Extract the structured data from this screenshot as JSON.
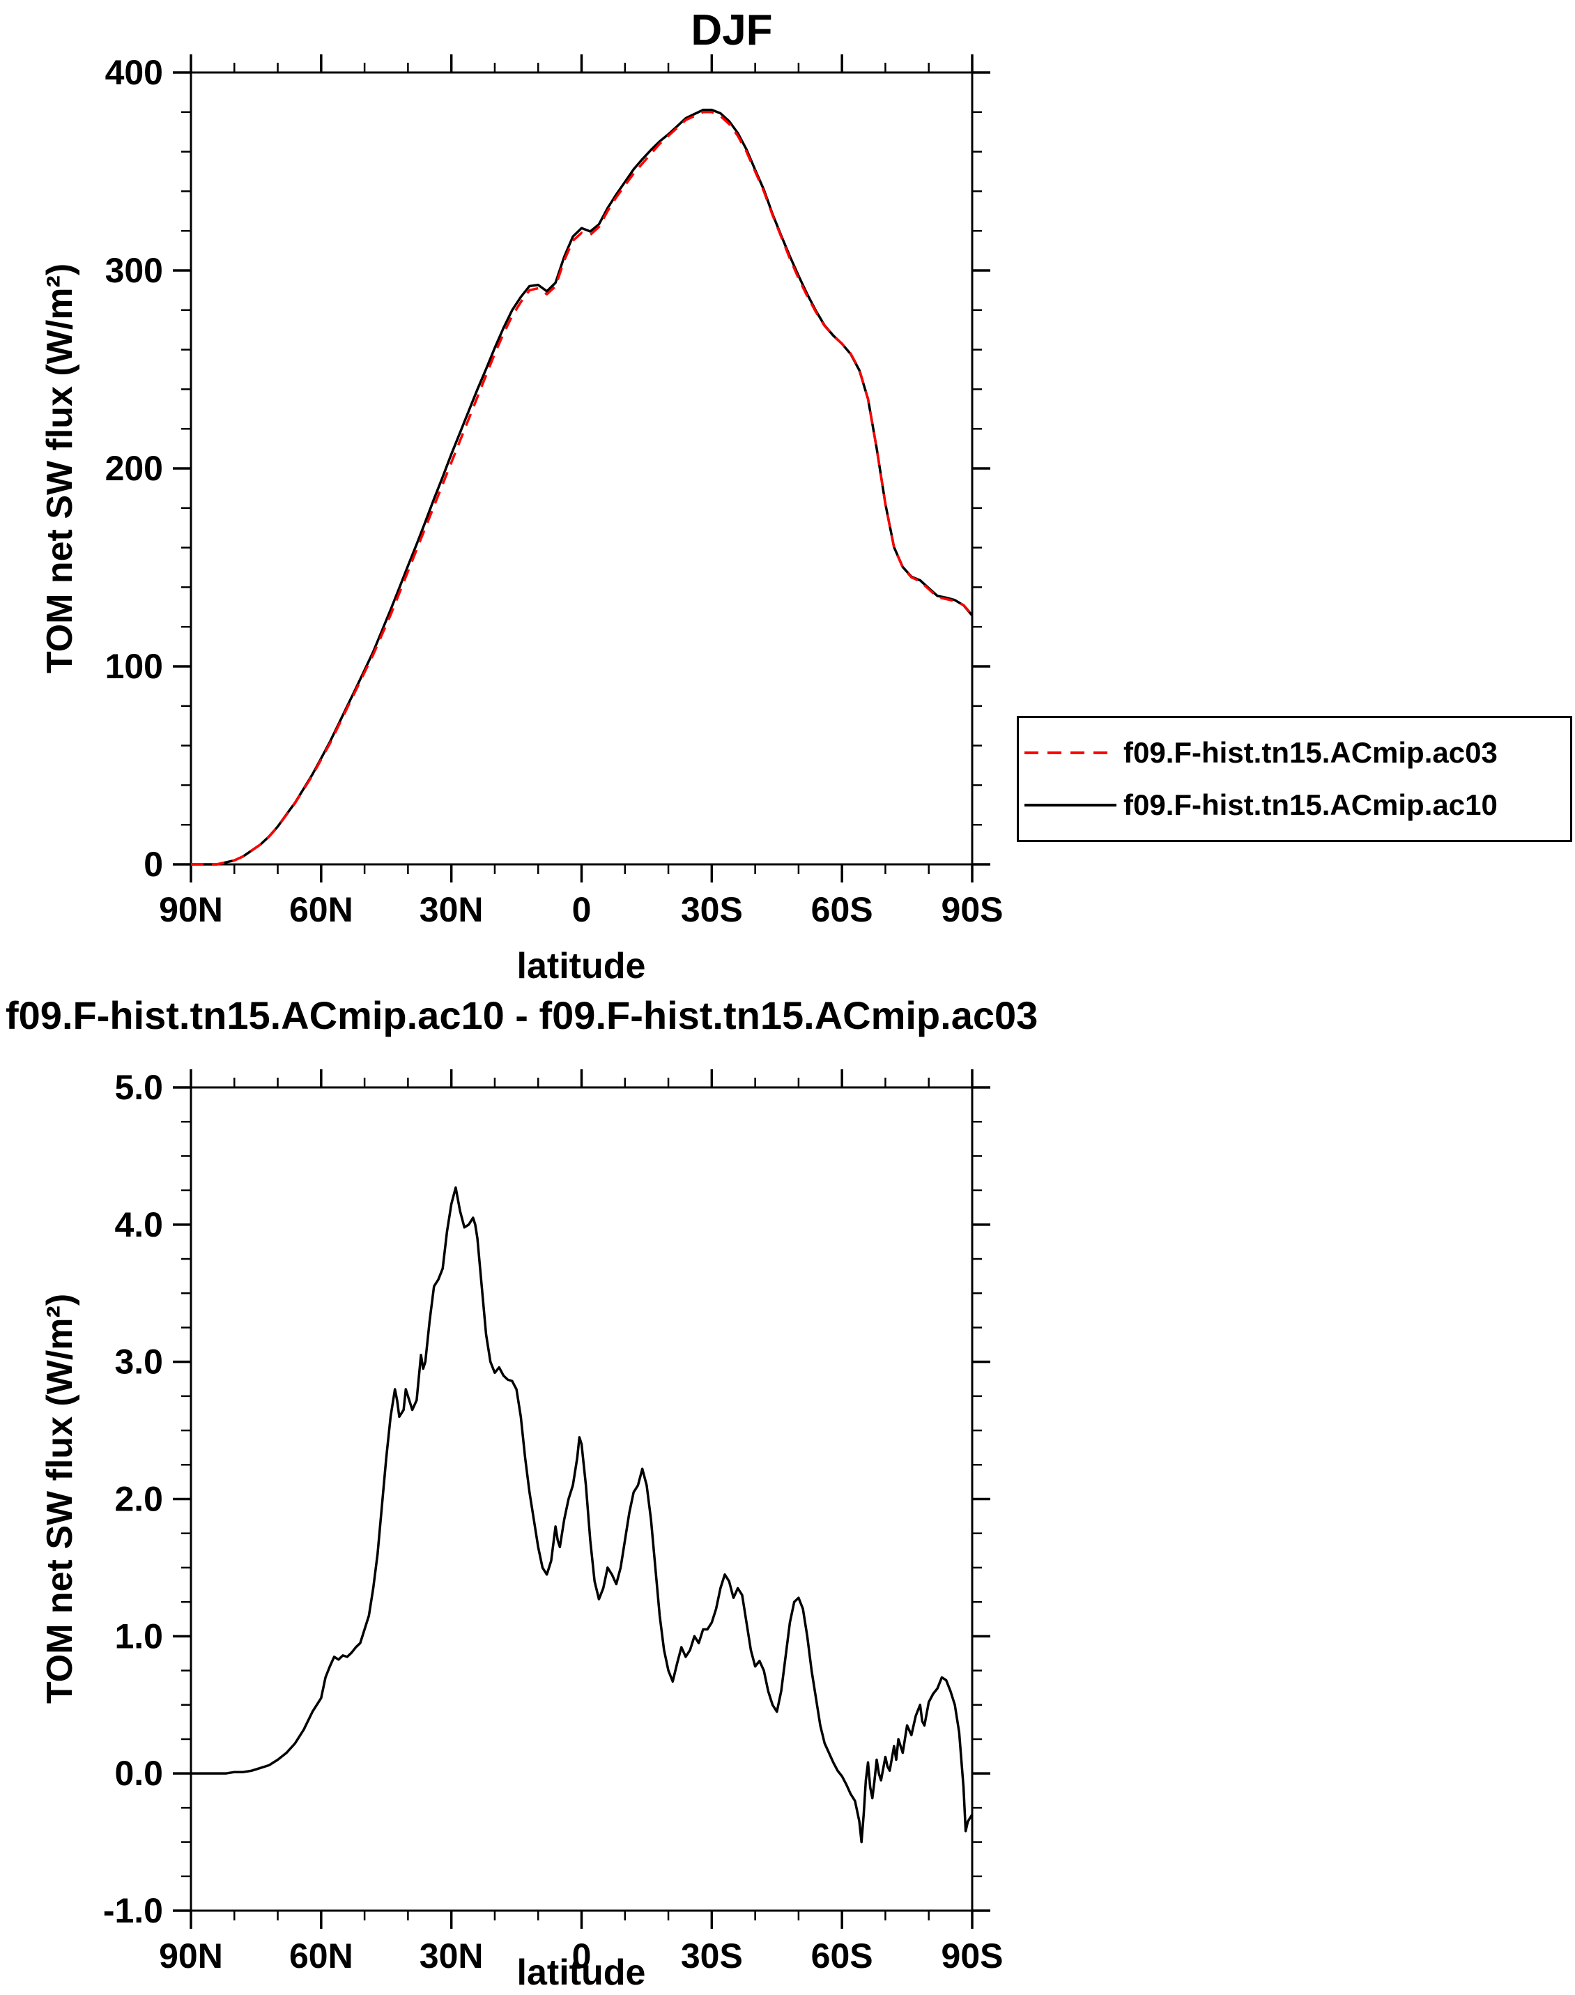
{
  "page": {
    "background": "#ffffff"
  },
  "chart_data": [
    {
      "type": "line",
      "title": "DJF",
      "xlabel": "latitude",
      "ylabel": "TOM net SW flux (W/m²)",
      "xlim": [
        90,
        -90
      ],
      "ylim": [
        0,
        400
      ],
      "grid": false,
      "xticks": {
        "values": [
          90,
          60,
          30,
          0,
          -30,
          -60,
          -90
        ],
        "labels": [
          "90N",
          "60N",
          "30N",
          "0",
          "30S",
          "60S",
          "90S"
        ]
      },
      "yticks": {
        "values": [
          0,
          100,
          200,
          300,
          400
        ],
        "labels": [
          "0",
          "100",
          "200",
          "300",
          "400"
        ]
      },
      "x_minor_step": 10,
      "y_minor_step": 20,
      "legend_position": "right-of-plot-lower",
      "x": [
        90,
        88,
        86,
        84,
        82,
        80,
        78,
        76,
        74,
        72,
        70,
        68,
        66,
        64,
        62,
        60,
        58,
        56,
        54,
        52,
        50,
        48,
        46,
        44,
        42,
        40,
        38,
        36,
        34,
        32,
        30,
        28,
        26,
        24,
        22,
        20,
        18,
        16,
        14,
        12,
        10,
        8,
        6,
        4,
        2,
        0,
        -2,
        -4,
        -6,
        -8,
        -10,
        -12,
        -14,
        -16,
        -18,
        -20,
        -22,
        -24,
        -26,
        -28,
        -30,
        -32,
        -34,
        -36,
        -38,
        -40,
        -42,
        -44,
        -46,
        -48,
        -50,
        -52,
        -54,
        -56,
        -58,
        -60,
        -62,
        -64,
        -66,
        -68,
        -70,
        -72,
        -74,
        -76,
        -78,
        -80,
        -82,
        -84,
        -86,
        -88,
        -90
      ],
      "series": [
        {
          "name": "f09.F-hist.tn15.ACmip.ac03",
          "color": "#ff0000",
          "dashed": true,
          "values": [
            0,
            0,
            0,
            0,
            1,
            2,
            4,
            7,
            10,
            14,
            19,
            25,
            31,
            38,
            45,
            53,
            61,
            70,
            79,
            88,
            97,
            106,
            116,
            126,
            137,
            148,
            159,
            170,
            181,
            192,
            203,
            214,
            225,
            236,
            247,
            258,
            268,
            277,
            284,
            290,
            291,
            288,
            292,
            305,
            315,
            319,
            318,
            322,
            330,
            337,
            343,
            349,
            354,
            359,
            364,
            368,
            372,
            376,
            378,
            380,
            380,
            378,
            374,
            368,
            360,
            350,
            340,
            328,
            317,
            306,
            296,
            287,
            279,
            272,
            267,
            263,
            258,
            250,
            235,
            210,
            182,
            160,
            150,
            145,
            143,
            139,
            135,
            134,
            133,
            131,
            126
          ]
        },
        {
          "name": "f09.F-hist.tn15.ACmip.ac10",
          "color": "#000000",
          "dashed": false,
          "values": [
            0,
            0,
            0,
            0,
            1,
            2,
            4,
            7,
            10,
            14.1,
            19.1,
            25.2,
            31.2,
            38.3,
            45.5,
            53.6,
            61.8,
            70.8,
            79.9,
            88.9,
            98.1,
            107.4,
            118,
            128.6,
            139.6,
            150.8,
            161.7,
            173,
            184.6,
            195.7,
            207.2,
            218.1,
            229,
            239.9,
            250.2,
            260.9,
            270.9,
            279.9,
            286.6,
            292.1,
            292.7,
            289.5,
            293.8,
            306.9,
            317.1,
            321.4,
            319.7,
            323.3,
            331.5,
            338.4,
            344.7,
            351.1,
            356.2,
            360.9,
            365.2,
            368.8,
            372.8,
            376.9,
            379,
            381.1,
            381.1,
            379.4,
            375.4,
            369.4,
            361.1,
            350.8,
            340.8,
            328.5,
            317.6,
            307.1,
            297.3,
            288,
            279.6,
            272.2,
            267.1,
            263,
            257.8,
            249.6,
            235.1,
            210.1,
            182.1,
            160.2,
            150.2,
            145.3,
            143.5,
            139.5,
            135.6,
            134.7,
            133.5,
            130.9,
            125.7
          ]
        }
      ]
    },
    {
      "type": "line",
      "title": "f09.F-hist.tn15.ACmip.ac10 - f09.F-hist.tn15.ACmip.ac03",
      "xlabel": "latitude",
      "ylabel": "TOM net SW flux (W/m²)",
      "xlim": [
        90,
        -90
      ],
      "ylim": [
        -1,
        5
      ],
      "grid": false,
      "xticks": {
        "values": [
          90,
          60,
          30,
          0,
          -30,
          -60,
          -90
        ],
        "labels": [
          "90N",
          "60N",
          "30N",
          "0",
          "30S",
          "60S",
          "90S"
        ]
      },
      "yticks": {
        "values": [
          -1,
          0,
          1,
          2,
          3,
          4,
          5
        ],
        "labels": [
          "-1.0",
          "0.0",
          "1.0",
          "2.0",
          "3.0",
          "4.0",
          "5.0"
        ]
      },
      "x_minor_step": 10,
      "y_minor_step": 0.25,
      "line_color": "#000000",
      "points": [
        [
          90,
          0
        ],
        [
          85,
          0
        ],
        [
          82,
          0
        ],
        [
          80,
          0.01
        ],
        [
          78,
          0.01
        ],
        [
          76,
          0.02
        ],
        [
          74,
          0.04
        ],
        [
          72,
          0.06
        ],
        [
          70,
          0.1
        ],
        [
          68,
          0.15
        ],
        [
          66,
          0.22
        ],
        [
          64,
          0.32
        ],
        [
          62,
          0.45
        ],
        [
          60,
          0.55
        ],
        [
          59,
          0.7
        ],
        [
          58,
          0.78
        ],
        [
          57,
          0.85
        ],
        [
          56,
          0.83
        ],
        [
          55,
          0.86
        ],
        [
          54,
          0.85
        ],
        [
          53,
          0.88
        ],
        [
          52,
          0.92
        ],
        [
          51,
          0.95
        ],
        [
          50,
          1.05
        ],
        [
          49,
          1.15
        ],
        [
          48,
          1.35
        ],
        [
          47,
          1.6
        ],
        [
          46,
          1.95
        ],
        [
          45,
          2.3
        ],
        [
          44,
          2.6
        ],
        [
          43,
          2.8
        ],
        [
          42.5,
          2.72
        ],
        [
          42,
          2.6
        ],
        [
          41,
          2.65
        ],
        [
          40.5,
          2.8
        ],
        [
          40,
          2.75
        ],
        [
          39,
          2.65
        ],
        [
          38,
          2.72
        ],
        [
          37,
          3.05
        ],
        [
          36.5,
          2.95
        ],
        [
          36,
          3.0
        ],
        [
          35,
          3.3
        ],
        [
          34,
          3.55
        ],
        [
          33,
          3.6
        ],
        [
          32,
          3.68
        ],
        [
          31,
          3.95
        ],
        [
          30,
          4.15
        ],
        [
          29,
          4.27
        ],
        [
          28,
          4.1
        ],
        [
          27,
          3.98
        ],
        [
          26,
          4.0
        ],
        [
          25,
          4.05
        ],
        [
          24.5,
          4.0
        ],
        [
          24,
          3.9
        ],
        [
          23,
          3.55
        ],
        [
          22,
          3.2
        ],
        [
          21,
          3.0
        ],
        [
          20,
          2.92
        ],
        [
          19,
          2.96
        ],
        [
          18,
          2.9
        ],
        [
          17,
          2.87
        ],
        [
          16,
          2.86
        ],
        [
          15,
          2.8
        ],
        [
          14,
          2.6
        ],
        [
          13,
          2.3
        ],
        [
          12,
          2.05
        ],
        [
          11,
          1.85
        ],
        [
          10,
          1.65
        ],
        [
          9,
          1.5
        ],
        [
          8,
          1.45
        ],
        [
          7,
          1.55
        ],
        [
          6,
          1.8
        ],
        [
          5.5,
          1.7
        ],
        [
          5,
          1.65
        ],
        [
          4,
          1.85
        ],
        [
          3,
          2.0
        ],
        [
          2,
          2.1
        ],
        [
          1,
          2.3
        ],
        [
          0.5,
          2.45
        ],
        [
          0,
          2.4
        ],
        [
          -1,
          2.1
        ],
        [
          -2,
          1.7
        ],
        [
          -3,
          1.4
        ],
        [
          -4,
          1.27
        ],
        [
          -5,
          1.35
        ],
        [
          -6,
          1.5
        ],
        [
          -7,
          1.45
        ],
        [
          -8,
          1.38
        ],
        [
          -9,
          1.5
        ],
        [
          -10,
          1.7
        ],
        [
          -11,
          1.9
        ],
        [
          -12,
          2.05
        ],
        [
          -13,
          2.1
        ],
        [
          -14,
          2.22
        ],
        [
          -15,
          2.1
        ],
        [
          -16,
          1.85
        ],
        [
          -17,
          1.5
        ],
        [
          -18,
          1.15
        ],
        [
          -19,
          0.9
        ],
        [
          -20,
          0.75
        ],
        [
          -21,
          0.67
        ],
        [
          -22,
          0.8
        ],
        [
          -23,
          0.92
        ],
        [
          -24,
          0.85
        ],
        [
          -25,
          0.9
        ],
        [
          -26,
          1.0
        ],
        [
          -27,
          0.95
        ],
        [
          -28,
          1.05
        ],
        [
          -29,
          1.05
        ],
        [
          -30,
          1.1
        ],
        [
          -31,
          1.2
        ],
        [
          -32,
          1.35
        ],
        [
          -33,
          1.45
        ],
        [
          -34,
          1.4
        ],
        [
          -35,
          1.28
        ],
        [
          -36,
          1.35
        ],
        [
          -37,
          1.3
        ],
        [
          -38,
          1.1
        ],
        [
          -39,
          0.9
        ],
        [
          -40,
          0.78
        ],
        [
          -41,
          0.82
        ],
        [
          -42,
          0.75
        ],
        [
          -43,
          0.6
        ],
        [
          -44,
          0.5
        ],
        [
          -45,
          0.45
        ],
        [
          -46,
          0.6
        ],
        [
          -47,
          0.85
        ],
        [
          -48,
          1.1
        ],
        [
          -49,
          1.25
        ],
        [
          -50,
          1.28
        ],
        [
          -51,
          1.2
        ],
        [
          -52,
          1.0
        ],
        [
          -53,
          0.75
        ],
        [
          -54,
          0.55
        ],
        [
          -55,
          0.35
        ],
        [
          -56,
          0.22
        ],
        [
          -57,
          0.15
        ],
        [
          -58,
          0.08
        ],
        [
          -59,
          0.02
        ],
        [
          -60,
          -0.02
        ],
        [
          -61,
          -0.08
        ],
        [
          -62,
          -0.15
        ],
        [
          -63,
          -0.2
        ],
        [
          -64,
          -0.35
        ],
        [
          -64.5,
          -0.5
        ],
        [
          -65,
          -0.3
        ],
        [
          -65.5,
          -0.05
        ],
        [
          -66,
          0.08
        ],
        [
          -66.5,
          -0.1
        ],
        [
          -67,
          -0.18
        ],
        [
          -67.5,
          -0.05
        ],
        [
          -68,
          0.1
        ],
        [
          -68.5,
          0
        ],
        [
          -69,
          -0.05
        ],
        [
          -70,
          0.12
        ],
        [
          -70.5,
          0.05
        ],
        [
          -71,
          0.02
        ],
        [
          -72,
          0.2
        ],
        [
          -72.5,
          0.1
        ],
        [
          -73,
          0.25
        ],
        [
          -74,
          0.15
        ],
        [
          -75,
          0.35
        ],
        [
          -76,
          0.28
        ],
        [
          -77,
          0.42
        ],
        [
          -78,
          0.5
        ],
        [
          -78.5,
          0.38
        ],
        [
          -79,
          0.35
        ],
        [
          -80,
          0.52
        ],
        [
          -81,
          0.58
        ],
        [
          -82,
          0.62
        ],
        [
          -83,
          0.7
        ],
        [
          -84,
          0.68
        ],
        [
          -85,
          0.6
        ],
        [
          -86,
          0.5
        ],
        [
          -87,
          0.3
        ],
        [
          -88,
          -0.1
        ],
        [
          -88.5,
          -0.42
        ],
        [
          -89,
          -0.35
        ],
        [
          -90,
          -0.3
        ]
      ]
    }
  ]
}
